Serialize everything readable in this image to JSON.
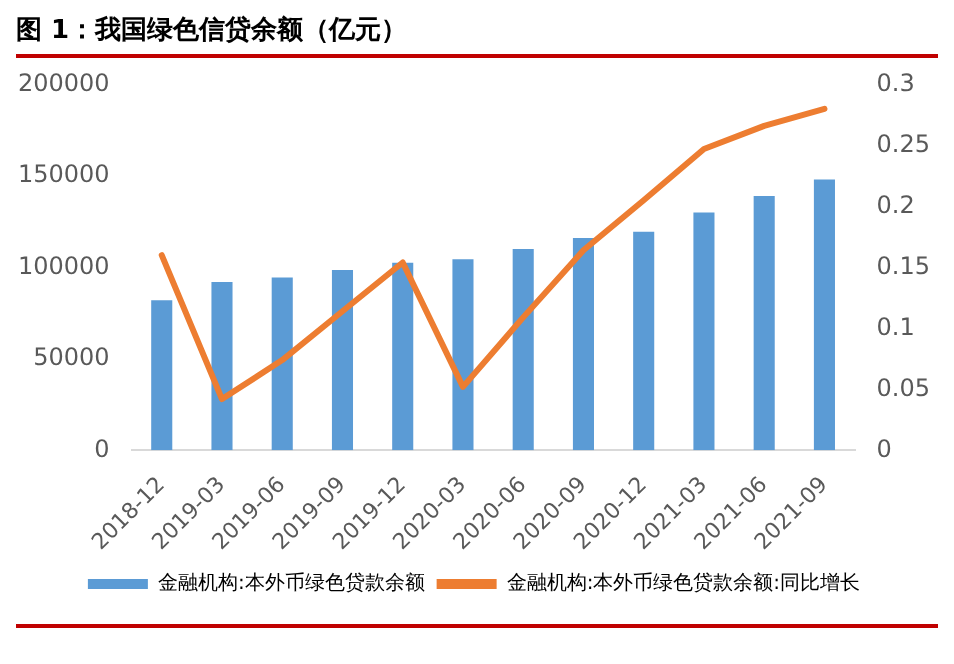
{
  "chart_data": {
    "type": "bar",
    "title": "图 1：我国绿色信贷余额（亿元）",
    "categories": [
      "2018-12",
      "2019-03",
      "2019-06",
      "2019-09",
      "2019-12",
      "2020-03",
      "2020-06",
      "2020-09",
      "2020-12",
      "2021-03",
      "2021-06",
      "2021-09"
    ],
    "series": [
      {
        "name": "金融机构:本外币绿色贷款余额",
        "color": "#5b9bd5",
        "values": [
          82000,
          92000,
          94500,
          98500,
          102500,
          104500,
          110000,
          116000,
          119500,
          130000,
          139000,
          148000
        ]
      },
      {
        "name": "金融机构:本外币绿色贷款余额:同比增长",
        "type": "line",
        "axis": "y2",
        "color": "#ed7d31",
        "marker": "none",
        "values": [
          0.16,
          0.042,
          0.074,
          0.114,
          0.154,
          0.052,
          0.109,
          0.164,
          0.205,
          0.247,
          0.266,
          0.28
        ]
      }
    ],
    "ylim": [
      0,
      200000
    ],
    "yticks": [
      0,
      50000,
      100000,
      150000,
      200000
    ],
    "y2lim": [
      0,
      0.3
    ],
    "y2ticks": [
      0,
      0.05,
      0.1,
      0.15,
      0.2,
      0.25,
      0.3
    ],
    "grid": false,
    "legend": "bottom"
  }
}
